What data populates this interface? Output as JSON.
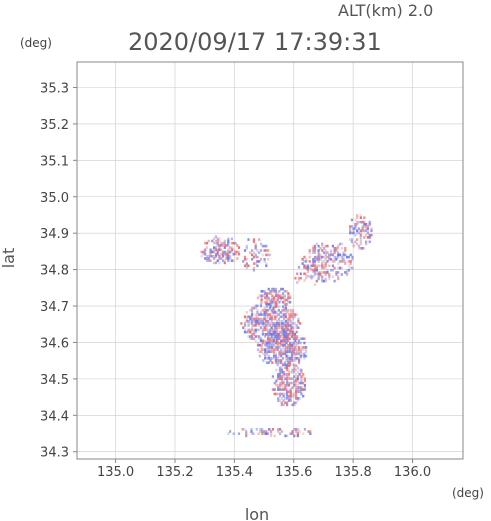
{
  "header": {
    "altitude_label": "ALT(km) 2.0",
    "timestamp": "2020/09/17 17:39:31"
  },
  "chart_data": {
    "type": "heatmap",
    "xlabel": "lon",
    "ylabel": "lat",
    "x_unit": "(deg)",
    "y_unit": "(deg)",
    "xlim": [
      134.87,
      136.17
    ],
    "ylim": [
      34.28,
      35.37
    ],
    "x_ticks": [
      "135.0",
      "135.2",
      "135.4",
      "135.6",
      "135.8",
      "136.0"
    ],
    "y_ticks": [
      "34.3",
      "34.4",
      "34.5",
      "34.6",
      "34.7",
      "34.8",
      "34.9",
      "35.0",
      "35.1",
      "35.2",
      "35.3"
    ],
    "grid": true,
    "colors": {
      "positive": "#e86a6a",
      "negative": "#6a78e8",
      "frame": "#888888",
      "grid": "#cccccc"
    },
    "echo_regions": [
      {
        "lon": 135.52,
        "lat": 34.65,
        "rlon": 0.1,
        "rlat": 0.06,
        "density": 0.85
      },
      {
        "lon": 135.56,
        "lat": 34.58,
        "rlon": 0.09,
        "rlat": 0.05,
        "density": 0.85
      },
      {
        "lon": 135.58,
        "lat": 34.48,
        "rlon": 0.06,
        "rlat": 0.06,
        "density": 0.75
      },
      {
        "lon": 135.53,
        "lat": 34.72,
        "rlon": 0.06,
        "rlat": 0.03,
        "density": 0.7
      },
      {
        "lon": 135.71,
        "lat": 34.82,
        "rlon": 0.09,
        "rlat": 0.06,
        "density": 0.55
      },
      {
        "lon": 135.82,
        "lat": 34.9,
        "rlon": 0.04,
        "rlat": 0.05,
        "density": 0.55
      },
      {
        "lon": 135.35,
        "lat": 34.85,
        "rlon": 0.07,
        "rlat": 0.04,
        "density": 0.7
      },
      {
        "lon": 135.47,
        "lat": 34.84,
        "rlon": 0.05,
        "rlat": 0.05,
        "density": 0.35
      },
      {
        "lon": 135.52,
        "lat": 34.35,
        "rlon": 0.15,
        "rlat": 0.015,
        "density": 0.4
      },
      {
        "lon": 135.64,
        "lat": 34.78,
        "rlon": 0.05,
        "rlat": 0.03,
        "density": 0.35
      }
    ]
  }
}
